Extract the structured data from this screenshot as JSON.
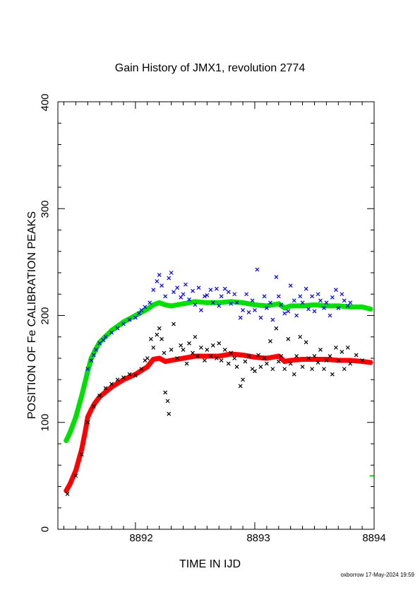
{
  "chart_data": {
    "type": "scatter",
    "title": "Gain History of JMX1, revolution 2774",
    "xlabel": "TIME IN IJD",
    "ylabel": "POSITION OF Fe CALIBRATION PEAKS",
    "footer": "oxborrow 17-May-2024 19:59",
    "xlim": [
      8891.35,
      8894.0
    ],
    "ylim": [
      0,
      400
    ],
    "xticks": [
      "8892",
      "8893",
      "8894"
    ],
    "xtick_values": [
      8892,
      8893,
      8894
    ],
    "yticks": [
      "0",
      "100",
      "200",
      "300",
      "400"
    ],
    "ytick_values": [
      0,
      100,
      200,
      300,
      400
    ],
    "grid": false,
    "colors": {
      "upper_fit": "#00e000",
      "upper_points": "#0000ff",
      "lower_fit": "#ff0000",
      "lower_points": "#000000"
    },
    "series": [
      {
        "color": "#00e000",
        "marker": "line",
        "x": [
          8891.42,
          8891.45,
          8891.5,
          8891.55,
          8891.6,
          8891.63,
          8891.66,
          8891.7,
          8891.8,
          8891.9,
          8892.0,
          8892.1,
          8892.15,
          8892.2,
          8892.25,
          8892.3,
          8892.4,
          8892.5,
          8892.6,
          8892.7,
          8892.8,
          8892.9,
          8893.0,
          8893.1,
          8893.2,
          8893.25,
          8893.3,
          8893.4,
          8893.5,
          8893.6,
          8893.7,
          8893.8,
          8893.9,
          8893.97
        ],
        "y": [
          83,
          90,
          105,
          125,
          148,
          160,
          167,
          175,
          186,
          194,
          200,
          206,
          210,
          212,
          210,
          209,
          211,
          213,
          212,
          212,
          213,
          212,
          210,
          209,
          211,
          207,
          209,
          209,
          210,
          209,
          209,
          208,
          208,
          206
        ]
      },
      {
        "color": "#0000ff",
        "marker": "x",
        "x": [
          8891.6,
          8891.63,
          8891.65,
          8891.67,
          8891.7,
          8891.73,
          8891.75,
          8891.8,
          8891.85,
          8891.9,
          8891.95,
          8892.0,
          8892.03,
          8892.05,
          8892.08,
          8892.12,
          8892.15,
          8892.18,
          8892.2,
          8892.22,
          8892.25,
          8892.28,
          8892.3,
          8892.32,
          8892.35,
          8892.38,
          8892.4,
          8892.42,
          8892.45,
          8892.48,
          8892.5,
          8892.53,
          8892.55,
          8892.58,
          8892.6,
          8892.63,
          8892.65,
          8892.68,
          8892.7,
          8892.72,
          8892.75,
          8892.78,
          8892.8,
          8892.83,
          8892.85,
          8892.88,
          8892.9,
          8892.93,
          8892.95,
          8892.98,
          8893.0,
          8893.02,
          8893.05,
          8893.08,
          8893.1,
          8893.13,
          8893.15,
          8893.18,
          8893.2,
          8893.22,
          8893.25,
          8893.28,
          8893.3,
          8893.33,
          8893.35,
          8893.38,
          8893.4,
          8893.43,
          8893.45,
          8893.48,
          8893.5,
          8893.53,
          8893.55,
          8893.58,
          8893.6,
          8893.63,
          8893.65,
          8893.68,
          8893.7,
          8893.73,
          8893.75,
          8893.78,
          8893.8
        ],
        "y": [
          150,
          158,
          163,
          168,
          174,
          177,
          180,
          184,
          188,
          192,
          196,
          198,
          202,
          205,
          208,
          212,
          224,
          232,
          238,
          228,
          218,
          235,
          240,
          222,
          226,
          217,
          220,
          229,
          215,
          223,
          210,
          226,
          205,
          218,
          219,
          224,
          212,
          225,
          209,
          218,
          225,
          222,
          211,
          220,
          212,
          198,
          205,
          220,
          203,
          214,
          205,
          243,
          198,
          218,
          207,
          212,
          196,
          236,
          218,
          210,
          202,
          204,
          228,
          214,
          200,
          218,
          212,
          225,
          206,
          218,
          204,
          220,
          214,
          207,
          212,
          200,
          217,
          224,
          207,
          220,
          214,
          209,
          212
        ]
      },
      {
        "color": "#ff0000",
        "marker": "line",
        "x": [
          8891.42,
          8891.45,
          8891.5,
          8891.55,
          8891.58,
          8891.6,
          8891.63,
          8891.66,
          8891.7,
          8891.8,
          8891.9,
          8892.0,
          8892.1,
          8892.15,
          8892.2,
          8892.25,
          8892.3,
          8892.4,
          8892.5,
          8892.6,
          8892.7,
          8892.8,
          8892.9,
          8893.0,
          8893.1,
          8893.2,
          8893.25,
          8893.3,
          8893.4,
          8893.5,
          8893.6,
          8893.7,
          8893.8,
          8893.9,
          8893.97
        ],
        "y": [
          36,
          42,
          55,
          75,
          92,
          105,
          112,
          118,
          124,
          133,
          140,
          145,
          152,
          159,
          160,
          157,
          158,
          160,
          162,
          162,
          162,
          164,
          163,
          161,
          160,
          162,
          157,
          158,
          159,
          159,
          159,
          158,
          158,
          157,
          156
        ]
      },
      {
        "color": "#000000",
        "marker": "x",
        "x": [
          8891.43,
          8891.5,
          8891.55,
          8891.6,
          8891.65,
          8891.7,
          8891.75,
          8891.8,
          8891.85,
          8891.9,
          8891.95,
          8892.0,
          8892.05,
          8892.08,
          8892.1,
          8892.13,
          8892.15,
          8892.18,
          8892.2,
          8892.22,
          8892.24,
          8892.25,
          8892.27,
          8892.28,
          8892.3,
          8892.32,
          8892.35,
          8892.38,
          8892.4,
          8892.43,
          8892.45,
          8892.48,
          8892.5,
          8892.52,
          8892.55,
          8892.58,
          8892.6,
          8892.63,
          8892.65,
          8892.68,
          8892.7,
          8892.72,
          8892.75,
          8892.78,
          8892.8,
          8892.83,
          8892.85,
          8892.88,
          8892.9,
          8892.92,
          8892.95,
          8892.98,
          8893.0,
          8893.03,
          8893.05,
          8893.08,
          8893.1,
          8893.13,
          8893.15,
          8893.18,
          8893.2,
          8893.22,
          8893.25,
          8893.28,
          8893.3,
          8893.33,
          8893.35,
          8893.38,
          8893.4,
          8893.43,
          8893.45,
          8893.48,
          8893.5,
          8893.53,
          8893.55,
          8893.58,
          8893.6,
          8893.63,
          8893.65,
          8893.68,
          8893.7,
          8893.73,
          8893.75,
          8893.78,
          8893.8,
          8893.85,
          8893.9
        ],
        "y": [
          33,
          50,
          70,
          100,
          115,
          125,
          132,
          136,
          140,
          142,
          145,
          144,
          150,
          158,
          160,
          178,
          170,
          182,
          188,
          178,
          165,
          128,
          120,
          108,
          168,
          192,
          160,
          172,
          168,
          155,
          174,
          165,
          180,
          162,
          170,
          158,
          168,
          162,
          172,
          160,
          174,
          158,
          168,
          155,
          165,
          160,
          152,
          134,
          140,
          157,
          162,
          150,
          148,
          163,
          152,
          160,
          155,
          176,
          150,
          188,
          157,
          162,
          150,
          178,
          155,
          145,
          162,
          180,
          152,
          175,
          160,
          150,
          162,
          156,
          168,
          150,
          158,
          162,
          145,
          170,
          158,
          166,
          150,
          170,
          155,
          163,
          158
        ]
      }
    ],
    "outlier": {
      "color": "#00e000",
      "x": 8893.98,
      "y": 50
    }
  }
}
